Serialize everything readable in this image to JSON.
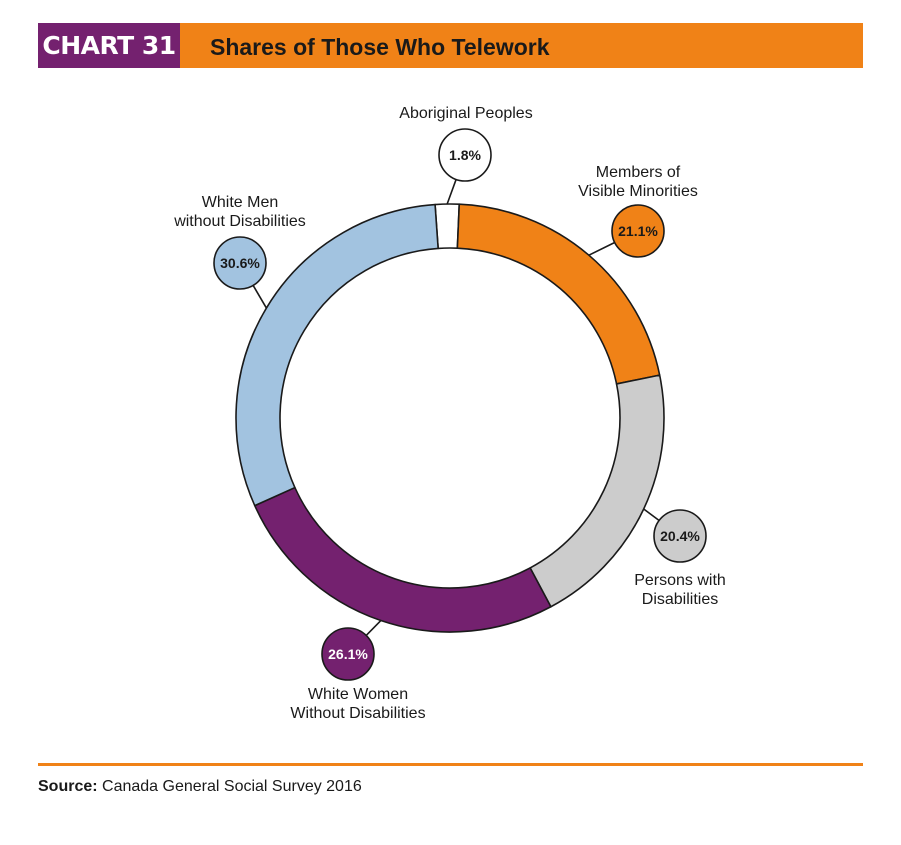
{
  "header": {
    "chart_number": "CHART 31",
    "title": "Shares of Those Who Telework"
  },
  "chart_data": {
    "type": "pie",
    "style": "donut",
    "title": "Shares of Those Who Telework",
    "slices": [
      {
        "name": "Aboriginal Peoples",
        "label_lines": [
          "Aboriginal Peoples"
        ],
        "value": 1.8,
        "value_label": "1.8%",
        "color": "#ffffff",
        "text_color": "#1a1a1a"
      },
      {
        "name": "Members of Visible Minorities",
        "label_lines": [
          "Members of",
          "Visible Minorities"
        ],
        "value": 21.1,
        "value_label": "21.1%",
        "color": "#f08217",
        "text_color": "#1a1a1a"
      },
      {
        "name": "Persons with Disabilities",
        "label_lines": [
          "Persons with",
          "Disabilities"
        ],
        "value": 20.4,
        "value_label": "20.4%",
        "color": "#cccccc",
        "text_color": "#1a1a1a"
      },
      {
        "name": "White Women Without Disabilities",
        "label_lines": [
          "White Women",
          "Without Disabilities"
        ],
        "value": 26.1,
        "value_label": "26.1%",
        "color": "#74216f",
        "text_color": "#ffffff"
      },
      {
        "name": "White Men without Disabilities",
        "label_lines": [
          "White Men",
          "without Disabilities"
        ],
        "value": 30.6,
        "value_label": "30.6%",
        "color": "#a2c3e0",
        "text_color": "#1a1a1a"
      }
    ],
    "legend": "none"
  },
  "footer": {
    "source_label": "Source:",
    "source_text": "Canada General Social Survey 2016"
  }
}
